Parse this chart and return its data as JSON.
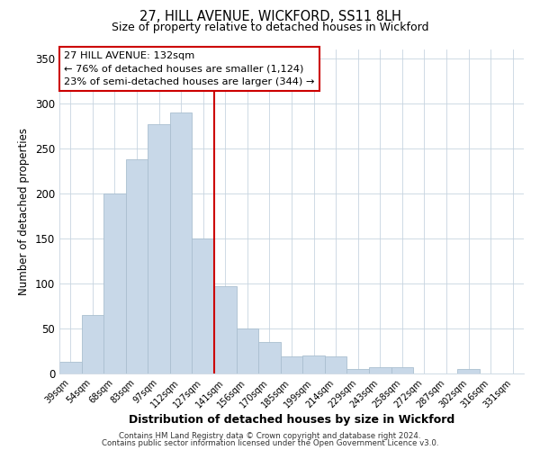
{
  "title": "27, HILL AVENUE, WICKFORD, SS11 8LH",
  "subtitle": "Size of property relative to detached houses in Wickford",
  "xlabel": "Distribution of detached houses by size in Wickford",
  "ylabel": "Number of detached properties",
  "footer_line1": "Contains HM Land Registry data © Crown copyright and database right 2024.",
  "footer_line2": "Contains public sector information licensed under the Open Government Licence v3.0.",
  "bar_labels": [
    "39sqm",
    "54sqm",
    "68sqm",
    "83sqm",
    "97sqm",
    "112sqm",
    "127sqm",
    "141sqm",
    "156sqm",
    "170sqm",
    "185sqm",
    "199sqm",
    "214sqm",
    "229sqm",
    "243sqm",
    "258sqm",
    "272sqm",
    "287sqm",
    "302sqm",
    "316sqm",
    "331sqm"
  ],
  "bar_values": [
    13,
    65,
    200,
    238,
    277,
    290,
    150,
    97,
    50,
    35,
    19,
    20,
    19,
    5,
    7,
    7,
    0,
    0,
    5,
    0,
    0
  ],
  "bar_color": "#c8d8e8",
  "bar_edgecolor": "#aabfd0",
  "vline_x_idx": 6,
  "vline_color": "#cc0000",
  "ylim": [
    0,
    360
  ],
  "yticks": [
    0,
    50,
    100,
    150,
    200,
    250,
    300,
    350
  ],
  "annotation_title": "27 HILL AVENUE: 132sqm",
  "annotation_line1": "← 76% of detached houses are smaller (1,124)",
  "annotation_line2": "23% of semi-detached houses are larger (344) →",
  "annotation_box_edgecolor": "#cc0000",
  "annotation_box_facecolor": "#ffffff"
}
